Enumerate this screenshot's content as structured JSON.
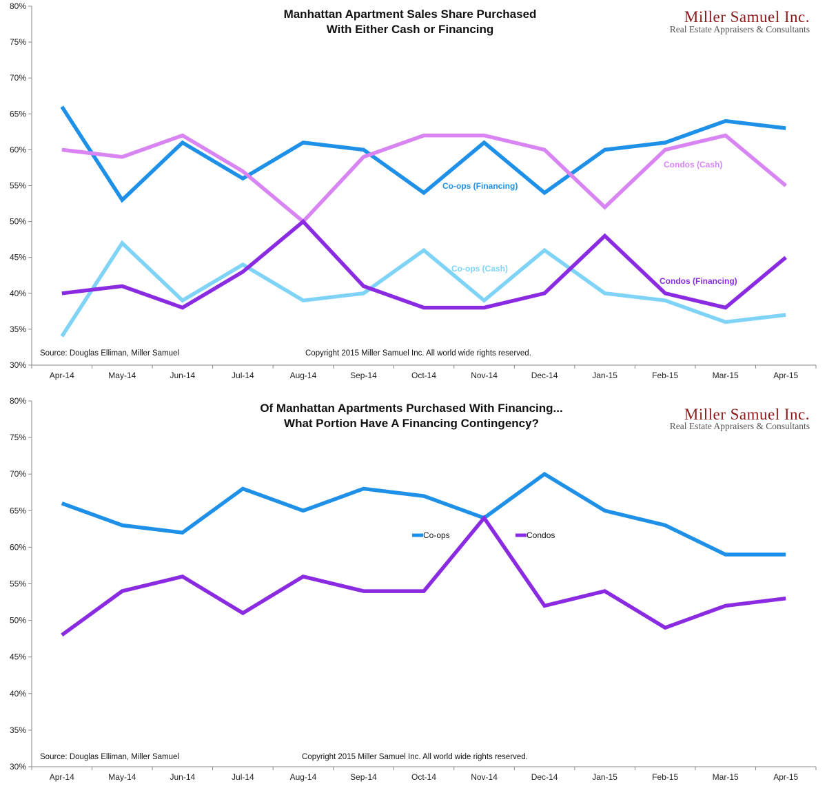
{
  "chart_data": [
    {
      "type": "line",
      "title_lines": [
        "Manhattan Apartment Sales Share Purchased",
        "With Either Cash or Financing"
      ],
      "brand": {
        "name": "Miller Samuel Inc.",
        "tagline": "Real Estate Appraisers & Consultants"
      },
      "source": "Source: Douglas Elliman, Miller Samuel",
      "copyright": "Copyright 2015 Miller Samuel Inc. All world wide rights reserved.",
      "categories": [
        "Apr-14",
        "May-14",
        "Jun-14",
        "Jul-14",
        "Aug-14",
        "Sep-14",
        "Oct-14",
        "Nov-14",
        "Dec-14",
        "Jan-15",
        "Feb-15",
        "Mar-15",
        "Apr-15"
      ],
      "ylim": [
        30,
        80
      ],
      "yticks": [
        "30%",
        "35%",
        "40%",
        "45%",
        "50%",
        "55%",
        "60%",
        "65%",
        "70%",
        "75%",
        "80%"
      ],
      "grid": false,
      "series": [
        {
          "name": "Co-ops (Financing)",
          "color": "#1e90e8",
          "values": [
            66,
            53,
            61,
            56,
            61,
            60,
            54,
            61,
            54,
            60,
            61,
            64,
            63
          ]
        },
        {
          "name": "Condos (Cash)",
          "color": "#d884f2",
          "values": [
            60,
            59,
            62,
            57,
            50,
            59,
            62,
            62,
            60,
            52,
            60,
            62,
            55
          ]
        },
        {
          "name": "Co-ops (Cash)",
          "color": "#7fd3f7",
          "values": [
            34,
            47,
            39,
            44,
            39,
            40,
            46,
            39,
            46,
            40,
            39,
            36,
            37
          ]
        },
        {
          "name": "Condos (Financing)",
          "color": "#8a2be2",
          "values": [
            40,
            41,
            38,
            43,
            50,
            41,
            38,
            38,
            40,
            48,
            40,
            38,
            45
          ]
        }
      ]
    },
    {
      "type": "line",
      "title_lines": [
        "Of Manhattan Apartments Purchased With Financing...",
        "What Portion Have A Financing Contingency?"
      ],
      "brand": {
        "name": "Miller Samuel Inc.",
        "tagline": "Real Estate Appraisers & Consultants"
      },
      "source": "Source: Douglas Elliman, Miller Samuel",
      "copyright": "Copyright 2015 Miller Samuel Inc.  All world wide rights reserved.",
      "categories": [
        "Apr-14",
        "May-14",
        "Jun-14",
        "Jul-14",
        "Aug-14",
        "Sep-14",
        "Oct-14",
        "Nov-14",
        "Dec-14",
        "Jan-15",
        "Feb-15",
        "Mar-15",
        "Apr-15"
      ],
      "ylim": [
        30,
        80
      ],
      "yticks": [
        "30%",
        "35%",
        "40%",
        "45%",
        "50%",
        "55%",
        "60%",
        "65%",
        "70%",
        "75%",
        "80%"
      ],
      "grid": false,
      "legend": "center",
      "series": [
        {
          "name": "Co-ops",
          "color": "#1e90e8",
          "values": [
            66,
            63,
            62,
            68,
            65,
            68,
            67,
            64,
            70,
            65,
            63,
            59,
            59
          ]
        },
        {
          "name": "Condos",
          "color": "#8a2be2",
          "values": [
            48,
            54,
            56,
            51,
            56,
            54,
            54,
            64,
            52,
            54,
            49,
            52,
            53
          ]
        }
      ]
    }
  ]
}
